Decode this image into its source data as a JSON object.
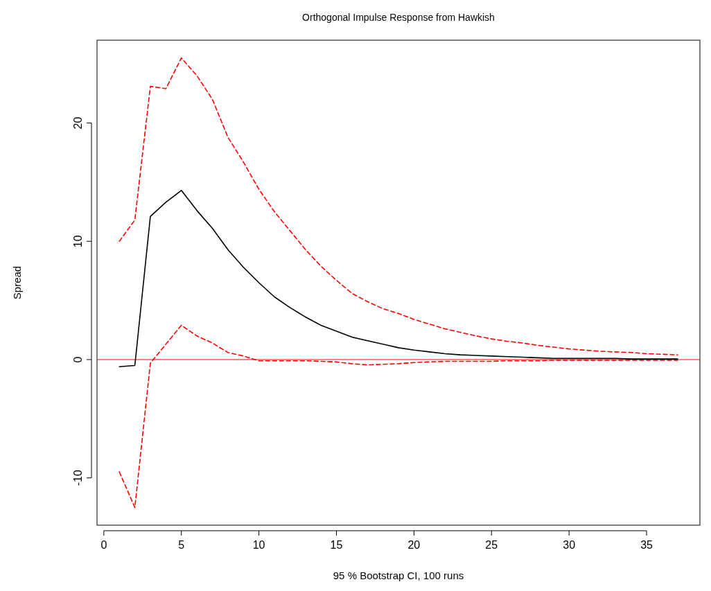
{
  "chart_data": {
    "type": "line",
    "title": "Orthogonal Impulse Response from Hawkish",
    "xlabel": "95 % Bootstrap CI,  100 runs",
    "ylabel": "Spread",
    "x": [
      1,
      2,
      3,
      4,
      5,
      6,
      7,
      8,
      9,
      10,
      11,
      12,
      13,
      14,
      15,
      16,
      17,
      18,
      19,
      20,
      21,
      22,
      23,
      24,
      25,
      26,
      27,
      28,
      29,
      30,
      31,
      32,
      33,
      34,
      35,
      36,
      37
    ],
    "series": [
      {
        "color": "#000000",
        "line_style": "solid",
        "values": [
          -0.6,
          -0.5,
          12.1,
          13.3,
          14.3,
          12.6,
          11.1,
          9.3,
          7.8,
          6.5,
          5.3,
          4.4,
          3.6,
          2.9,
          2.4,
          1.9,
          1.6,
          1.3,
          1.0,
          0.8,
          0.65,
          0.5,
          0.4,
          0.35,
          0.3,
          0.25,
          0.2,
          0.15,
          0.1,
          0.1,
          0.1,
          0.1,
          0.1,
          0.05,
          0.05,
          0.05,
          0.05
        ]
      },
      {
        "color": "#ff0000",
        "line_style": "dashed",
        "values": [
          10.0,
          11.8,
          23.1,
          22.9,
          25.5,
          24.0,
          22.0,
          18.8,
          16.7,
          14.4,
          12.5,
          10.9,
          9.3,
          7.9,
          6.7,
          5.6,
          4.9,
          4.3,
          3.9,
          3.4,
          3.0,
          2.6,
          2.3,
          2.0,
          1.75,
          1.55,
          1.4,
          1.2,
          1.05,
          0.9,
          0.8,
          0.7,
          0.65,
          0.6,
          0.5,
          0.45,
          0.4
        ]
      },
      {
        "color": "#ff0000",
        "line_style": "dashed",
        "values": [
          -9.5,
          -12.5,
          -0.3,
          1.3,
          2.9,
          2.0,
          1.4,
          0.6,
          0.3,
          -0.1,
          -0.1,
          -0.1,
          -0.1,
          -0.15,
          -0.2,
          -0.35,
          -0.45,
          -0.4,
          -0.35,
          -0.25,
          -0.2,
          -0.15,
          -0.15,
          -0.15,
          -0.15,
          -0.1,
          -0.1,
          -0.1,
          -0.05,
          -0.05,
          -0.05,
          -0.05,
          -0.05,
          -0.05,
          -0.05,
          -0.05,
          -0.05
        ]
      }
    ],
    "xlim": [
      -0.44,
      38.44
    ],
    "ylim": [
      -14,
      27
    ],
    "xticks": [
      0,
      5,
      10,
      15,
      20,
      25,
      30,
      35
    ],
    "yticks": [
      -10,
      0,
      10,
      20
    ],
    "ref_lines": [
      {
        "axis": "y",
        "value": 0,
        "color": "#ff0000",
        "line_style": "solid"
      }
    ]
  }
}
